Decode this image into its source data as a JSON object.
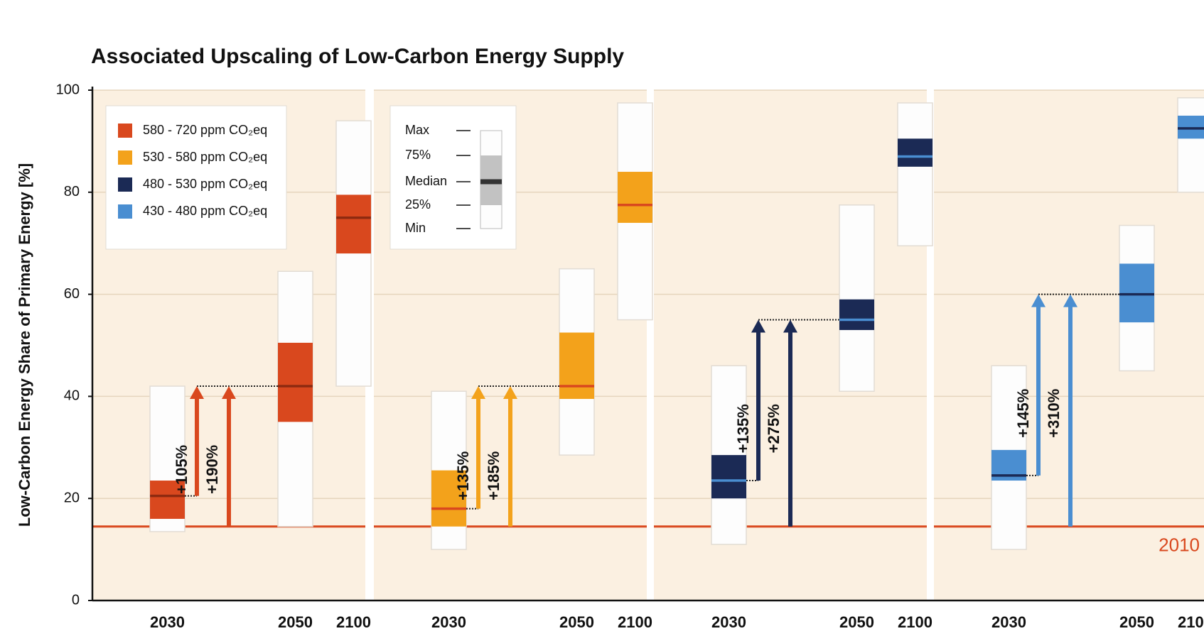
{
  "chart_data": {
    "type": "box",
    "title": "Associated Upscaling of Low-Carbon Energy Supply",
    "ylabel": "Low-Carbon Energy Share of Primary Energy [%]",
    "ylim": [
      0,
      100
    ],
    "yticks": [
      0,
      20,
      40,
      60,
      80,
      100
    ],
    "grid": true,
    "categories": [
      "2030",
      "2050",
      "2100"
    ],
    "baseline": {
      "value": 14.5,
      "label": "2010",
      "color": "#d9481e"
    },
    "legend_stats": [
      "Max",
      "75%",
      "Median",
      "25%",
      "Min"
    ],
    "series": [
      {
        "name": "580 - 720  ppm CO₂eq",
        "color": "#d9481e",
        "median_color": "#8e2a10",
        "boxes": [
          {
            "min": 13.5,
            "q1": 16,
            "median": 20.5,
            "q3": 23.5,
            "max": 42
          },
          {
            "min": 14.5,
            "q1": 35,
            "median": 42,
            "q3": 50.5,
            "max": 64.5
          },
          {
            "min": 42,
            "q1": 68,
            "median": 75,
            "q3": 79.5,
            "max": 94
          }
        ],
        "arrow_labels": [
          "+105%",
          "+190%"
        ]
      },
      {
        "name": "530 - 580  ppm CO₂eq",
        "color": "#f3a21b",
        "median_color": "#d9481e",
        "boxes": [
          {
            "min": 10,
            "q1": 14.5,
            "median": 18,
            "q3": 25.5,
            "max": 41
          },
          {
            "min": 28.5,
            "q1": 39.5,
            "median": 42,
            "q3": 52.5,
            "max": 65
          },
          {
            "min": 55,
            "q1": 74,
            "median": 77.5,
            "q3": 84,
            "max": 97.5
          }
        ],
        "arrow_labels": [
          "+135%",
          "+185%"
        ]
      },
      {
        "name": "480 - 530  ppm CO₂eq",
        "color": "#1b2a55",
        "median_color": "#4a8ed1",
        "boxes": [
          {
            "min": 11,
            "q1": 20,
            "median": 23.5,
            "q3": 28.5,
            "max": 46
          },
          {
            "min": 41,
            "q1": 53,
            "median": 55,
            "q3": 59,
            "max": 77.5
          },
          {
            "min": 69.5,
            "q1": 85,
            "median": 87,
            "q3": 90.5,
            "max": 97.5
          }
        ],
        "arrow_labels": [
          "+135%",
          "+275%"
        ]
      },
      {
        "name": "430 - 480  ppm CO₂eq",
        "color": "#4a8ed1",
        "median_color": "#1b2a55",
        "boxes": [
          {
            "min": 10,
            "q1": 23.5,
            "median": 24.5,
            "q3": 29.5,
            "max": 46
          },
          {
            "min": 45,
            "q1": 54.5,
            "median": 60,
            "q3": 66,
            "max": 73.5
          },
          {
            "min": 80,
            "q1": 90.5,
            "median": 92.5,
            "q3": 95,
            "max": 98.5
          }
        ],
        "arrow_labels": [
          "+145%",
          "+310%"
        ]
      }
    ]
  }
}
